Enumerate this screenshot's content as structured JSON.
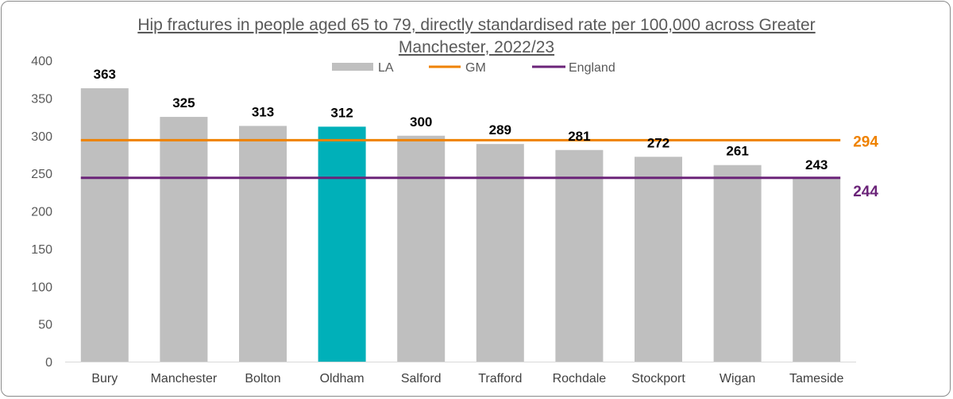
{
  "chart_data": {
    "type": "bar",
    "title_lines": [
      "Hip fractures in people aged 65 to 79, directly standardised rate per 100,000 across Greater",
      "Manchester, 2022/23"
    ],
    "categories": [
      "Bury",
      "Manchester",
      "Bolton",
      "Oldham",
      "Salford",
      "Trafford",
      "Rochdale",
      "Stockport",
      "Wigan",
      "Tameside"
    ],
    "series": [
      {
        "name": "LA",
        "values": [
          363,
          325,
          313,
          312,
          300,
          289,
          281,
          272,
          261,
          243
        ],
        "color": "#bfbfbf",
        "highlight_index": 3,
        "highlight_color": "#00b0b9"
      }
    ],
    "reference_lines": [
      {
        "name": "GM",
        "value": 294,
        "label": "294",
        "color": "#ef8200"
      },
      {
        "name": "England",
        "value": 244,
        "label": "244",
        "color": "#6b2479"
      }
    ],
    "ylim": [
      0,
      400
    ],
    "yticks": [
      "0",
      "50",
      "100",
      "150",
      "200",
      "250",
      "300",
      "350",
      "400"
    ],
    "grid": false,
    "legend_position": "top-center"
  }
}
